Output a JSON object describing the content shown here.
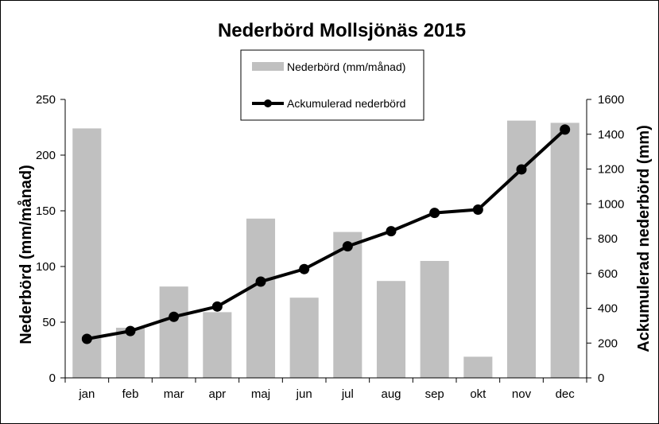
{
  "chart_data": {
    "type": "bar+line",
    "title": "Nederbörd Mollsjönäs 2015",
    "categories": [
      "jan",
      "feb",
      "mar",
      "apr",
      "maj",
      "jun",
      "jul",
      "aug",
      "sep",
      "okt",
      "nov",
      "dec"
    ],
    "series": [
      {
        "name": "Nederbörd (mm/månad)",
        "type": "bar",
        "axis": "left",
        "color": "#c0c0c0",
        "values": [
          224,
          45,
          82,
          59,
          143,
          72,
          131,
          87,
          105,
          19,
          231,
          229
        ]
      },
      {
        "name": "Ackumulerad nederbörd",
        "type": "line",
        "axis": "right",
        "color": "#000000",
        "values": [
          224,
          269,
          351,
          410,
          553,
          625,
          756,
          843,
          948,
          967,
          1198,
          1427
        ]
      }
    ],
    "ylabel_left": "Nederbörd (mm/månad)",
    "ylabel_right": "Ackumulerad nederbörd (mm)",
    "ylim_left": [
      0,
      250
    ],
    "ylim_right": [
      0,
      1600
    ],
    "yticks_left": [
      "0",
      "50",
      "100",
      "150",
      "200",
      "250"
    ],
    "yticks_right": [
      "0",
      "200",
      "400",
      "600",
      "800",
      "1000",
      "1200",
      "1400",
      "1600"
    ],
    "grid": false,
    "legend_position": "top-center"
  }
}
